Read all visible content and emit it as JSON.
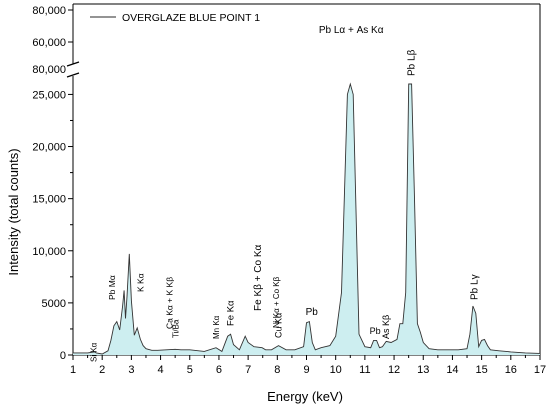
{
  "chart_data": {
    "type": "area",
    "title": "",
    "xlabel": "Energy (keV)",
    "ylabel": "Intensity (total counts)",
    "legend": {
      "label": "OVERGLAZE BLUE POINT 1",
      "position": "top-left"
    },
    "xlim": [
      1,
      17
    ],
    "ylim_lower": [
      0,
      26000
    ],
    "ylim_upper": [
      60000,
      80000
    ],
    "axis_break": true,
    "x_ticks": [
      "1",
      "2",
      "3",
      "4",
      "5",
      "6",
      "7",
      "8",
      "9",
      "10",
      "11",
      "12",
      "13",
      "14",
      "15",
      "16",
      "17"
    ],
    "y_ticks_lower": [
      "0",
      "5000",
      "10,000",
      "15,000",
      "20,000",
      "25,000"
    ],
    "y_ticks_upper": [
      "60,000",
      "80,000"
    ],
    "break_label": "80,000",
    "grid": false,
    "fill_color": "#cdeef0",
    "line_color": "#333333",
    "series": [
      {
        "name": "OVERGLAZE BLUE POINT 1",
        "x": [
          1.0,
          1.5,
          1.74,
          1.8,
          2.0,
          2.2,
          2.3,
          2.4,
          2.5,
          2.6,
          2.7,
          2.75,
          2.8,
          2.85,
          2.93,
          3.0,
          3.1,
          3.2,
          3.31,
          3.4,
          3.5,
          3.7,
          3.9,
          4.2,
          4.5,
          4.7,
          5.0,
          5.5,
          5.9,
          6.1,
          6.3,
          6.4,
          6.5,
          6.7,
          6.9,
          7.0,
          7.2,
          7.48,
          7.6,
          7.8,
          8.04,
          8.3,
          8.6,
          8.9,
          9.0,
          9.1,
          9.2,
          9.3,
          9.5,
          9.8,
          10.0,
          10.2,
          10.4,
          10.5,
          10.6,
          10.8,
          11.0,
          11.2,
          11.3,
          11.4,
          11.5,
          11.6,
          11.73,
          11.9,
          12.1,
          12.2,
          12.3,
          12.4,
          12.5,
          12.6,
          12.7,
          12.8,
          12.9,
          13.0,
          13.2,
          13.5,
          13.8,
          14.2,
          14.5,
          14.6,
          14.7,
          14.8,
          14.9,
          15.0,
          15.1,
          15.2,
          15.3,
          15.6,
          16.0,
          16.5,
          17.0
        ],
        "y": [
          200,
          200,
          300,
          200,
          100,
          400,
          1400,
          2800,
          3200,
          2400,
          4700,
          6200,
          3500,
          5600,
          9700,
          5200,
          1900,
          2600,
          1500,
          900,
          600,
          450,
          450,
          500,
          550,
          500,
          500,
          350,
          700,
          350,
          1800,
          2000,
          1000,
          500,
          1800,
          1200,
          800,
          700,
          500,
          500,
          900,
          500,
          500,
          800,
          3100,
          3200,
          1200,
          500,
          700,
          900,
          1800,
          6000,
          25000,
          26000,
          25000,
          2000,
          800,
          700,
          1400,
          1400,
          700,
          800,
          1300,
          1200,
          1500,
          3000,
          3000,
          6000,
          26000,
          26000,
          15000,
          3000,
          2200,
          1200,
          600,
          500,
          500,
          500,
          600,
          2000,
          4700,
          4000,
          800,
          1400,
          1500,
          900,
          500,
          400,
          300,
          200,
          150
        ]
      }
    ],
    "annotations": [
      {
        "text": "Si Kα",
        "x": 1.74
      },
      {
        "text": "Pb Mα",
        "x": 2.34
      },
      {
        "text": "K Kα",
        "x": 3.31
      },
      {
        "text": "Ca Kα + K Kβ",
        "x": 3.69
      },
      {
        "text": "Ti/Ba",
        "x": 4.51
      },
      {
        "text": "Mn Kα",
        "x": 5.9
      },
      {
        "text": "Fe Kα",
        "x": 6.4
      },
      {
        "text": "Fe Kβ + Co Kα",
        "x": 6.93
      },
      {
        "text": "Ni Kα + Co Kβ",
        "x": 7.48
      },
      {
        "text": "Cu Kα",
        "x": 8.04
      },
      {
        "text": "Pb",
        "x": 9.18
      },
      {
        "text": "Pb Lα + As Kα",
        "x": 10.53
      },
      {
        "text": "Pb",
        "x": 11.35
      },
      {
        "text": "As Kβ",
        "x": 11.73
      },
      {
        "text": "Pb Lβ",
        "x": 12.6
      },
      {
        "text": "Pb Lγ",
        "x": 14.76
      }
    ]
  }
}
